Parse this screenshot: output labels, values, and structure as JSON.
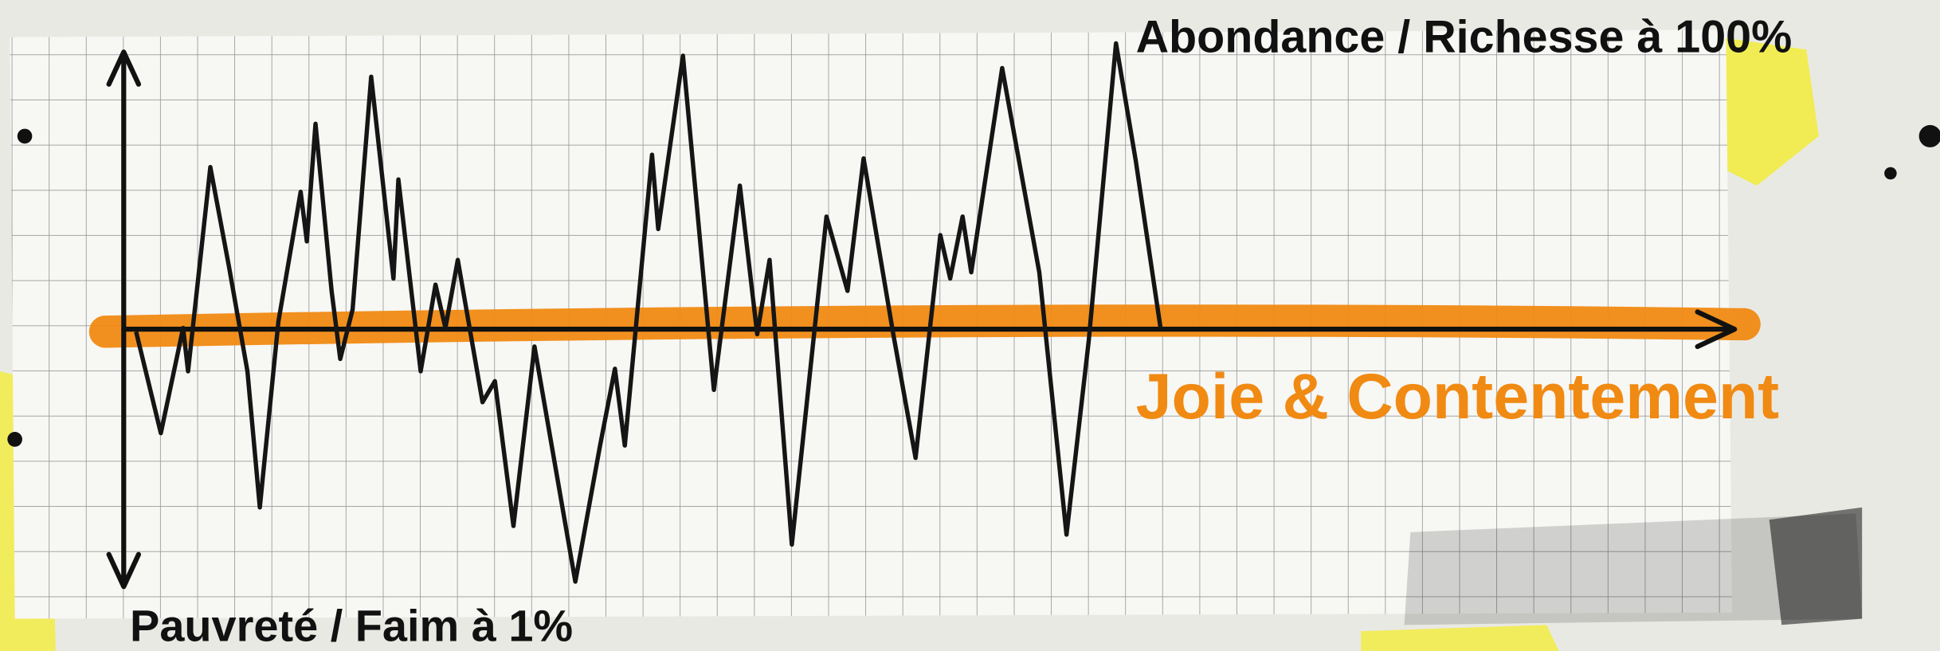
{
  "labels": {
    "top": "Abondance / Richesse à 100%",
    "axis": "Joie & Contentement",
    "bottom": "Pauvreté / Faim à 1%"
  }
}
